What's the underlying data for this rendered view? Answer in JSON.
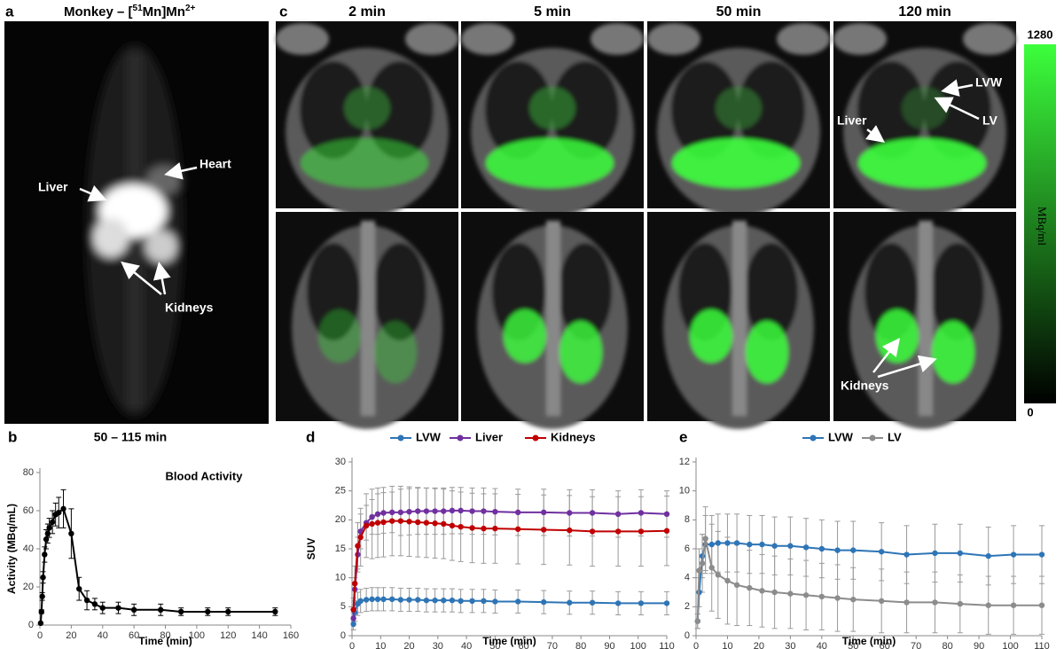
{
  "panel_a": {
    "label": "a",
    "title": [
      "Monkey – [",
      "51",
      "Mn]Mn",
      "2+"
    ],
    "annotations": [
      "Heart",
      "Liver",
      "Kidneys"
    ]
  },
  "panel_c": {
    "label": "c",
    "columns": [
      "2 min",
      "5 min",
      "50 min",
      "120 min"
    ],
    "annotations": [
      "LVW",
      "LV",
      "Liver",
      "Kidneys"
    ],
    "colorbar": {
      "max": 1280,
      "min": 0,
      "unit": "MBq/ml"
    }
  },
  "chart_data": [
    {
      "type": "line",
      "panel": "b",
      "title": "50 – 115 min",
      "annotation": "Blood Activity",
      "xlabel": "Time (min)",
      "ylabel": "Activity (MBq/mL)",
      "xlim": [
        0,
        160
      ],
      "xticks": [
        0,
        20,
        40,
        60,
        80,
        100,
        120,
        140,
        160
      ],
      "ylim": [
        0,
        80
      ],
      "yticks": [
        0,
        20,
        40,
        60,
        80
      ],
      "color": "#000000",
      "x": [
        0.5,
        1,
        1.5,
        2,
        3,
        4,
        5,
        6,
        8,
        10,
        12,
        15,
        20,
        25,
        30,
        35,
        40,
        50,
        60,
        77,
        90,
        107,
        120,
        150
      ],
      "values": [
        1,
        7,
        15,
        25,
        37,
        45,
        48,
        51,
        54,
        58,
        59,
        61,
        48,
        19,
        13,
        11,
        9,
        9,
        8,
        8,
        7,
        7,
        7,
        7
      ],
      "errors": [
        0,
        1,
        2,
        3,
        4,
        5,
        5,
        5,
        6,
        6,
        8,
        10,
        13,
        6,
        5,
        3,
        3,
        3,
        3,
        3,
        2,
        2,
        2,
        2
      ]
    },
    {
      "type": "line",
      "panel": "d",
      "xlabel": "Time (min)",
      "ylabel": "SUV",
      "xlim": [
        0,
        110
      ],
      "xticks": [
        0,
        10,
        20,
        30,
        40,
        50,
        60,
        70,
        80,
        90,
        100,
        110
      ],
      "ylim": [
        0,
        30
      ],
      "yticks": [
        0,
        5,
        10,
        15,
        20,
        25,
        30
      ],
      "x": [
        0.5,
        1,
        2,
        3,
        5,
        7,
        9,
        11,
        14,
        17,
        20,
        23,
        26,
        29,
        32,
        35,
        38,
        42,
        46,
        50,
        58,
        67,
        76,
        84,
        93,
        101,
        110
      ],
      "series": [
        {
          "name": "LVW",
          "color": "#2e75b6",
          "values": [
            2,
            4,
            5.5,
            6,
            6.2,
            6.3,
            6.3,
            6.3,
            6.3,
            6.2,
            6.2,
            6.2,
            6.1,
            6.1,
            6.1,
            6.1,
            6,
            6,
            6,
            5.9,
            5.9,
            5.8,
            5.7,
            5.7,
            5.6,
            5.6,
            5.6
          ],
          "errors": [
            1,
            1.5,
            2,
            2,
            2,
            2,
            2,
            2,
            2,
            2,
            2,
            2,
            2,
            2,
            2,
            2,
            2,
            2,
            2,
            2,
            2,
            2,
            2,
            2,
            2,
            2,
            2
          ]
        },
        {
          "name": "Liver",
          "color": "#7030a0",
          "values": [
            3,
            8,
            14,
            18,
            19.5,
            20.5,
            21,
            21.2,
            21.3,
            21.3,
            21.4,
            21.5,
            21.5,
            21.5,
            21.5,
            21.6,
            21.6,
            21.5,
            21.5,
            21.4,
            21.3,
            21.3,
            21.2,
            21.2,
            21,
            21.2,
            21
          ],
          "errors": [
            1,
            2,
            3,
            3,
            3,
            3,
            3.5,
            3.5,
            3.5,
            4,
            4,
            4,
            4,
            4,
            4,
            4,
            4,
            4,
            4,
            4,
            4,
            4,
            4,
            4,
            4,
            4,
            4
          ]
        },
        {
          "name": "Kidneys",
          "color": "#c00000",
          "values": [
            4.5,
            9,
            15.5,
            17,
            19,
            19.3,
            19.5,
            19.6,
            19.8,
            19.8,
            19.7,
            19.6,
            19.5,
            19.4,
            19.3,
            19,
            18.8,
            18.6,
            18.5,
            18.5,
            18.4,
            18.3,
            18.2,
            18,
            18,
            18,
            18.1
          ],
          "errors": [
            2,
            3,
            4,
            5,
            5.5,
            6,
            6,
            6,
            6,
            6,
            6,
            6,
            6,
            6,
            6,
            6,
            6,
            6,
            6,
            6,
            6,
            6,
            6,
            6,
            6,
            6,
            6
          ]
        }
      ]
    },
    {
      "type": "line",
      "panel": "e",
      "xlabel": "Time (min)",
      "xlim": [
        0,
        110
      ],
      "xticks": [
        0,
        10,
        20,
        30,
        40,
        50,
        60,
        70,
        80,
        90,
        100,
        110
      ],
      "ylim": [
        0,
        12
      ],
      "yticks": [
        0,
        2,
        4,
        6,
        8,
        10,
        12
      ],
      "x": [
        0.5,
        1,
        2,
        3,
        5,
        7,
        10,
        13,
        17,
        21,
        25,
        30,
        35,
        40,
        45,
        50,
        59,
        67,
        76,
        84,
        93,
        101,
        110
      ],
      "series": [
        {
          "name": "LVW",
          "color": "#2e75b6",
          "values": [
            1,
            3,
            5.5,
            6.3,
            6.3,
            6.4,
            6.4,
            6.4,
            6.3,
            6.3,
            6.2,
            6.2,
            6.1,
            6,
            5.9,
            5.9,
            5.8,
            5.6,
            5.7,
            5.7,
            5.5,
            5.6,
            5.6
          ],
          "errors": [
            0.5,
            1,
            1.5,
            2,
            2,
            2,
            2,
            2,
            2,
            2,
            2,
            2,
            2,
            2,
            2,
            2,
            2,
            2,
            2,
            2,
            2,
            2,
            2
          ]
        },
        {
          "name": "LV",
          "color": "#8c8c8c",
          "values": [
            1,
            4.5,
            5,
            6.7,
            4.7,
            4.2,
            3.8,
            3.5,
            3.3,
            3.1,
            3,
            2.9,
            2.8,
            2.7,
            2.6,
            2.5,
            2.4,
            2.3,
            2.3,
            2.2,
            2.1,
            2.1,
            2.1
          ],
          "errors": [
            0.5,
            1.5,
            2,
            2.2,
            3,
            3,
            3,
            2.8,
            2.6,
            2.5,
            2.5,
            2.4,
            2.4,
            2.3,
            2.3,
            2.2,
            2.2,
            2.1,
            2.1,
            2,
            2,
            2,
            2
          ]
        }
      ]
    }
  ]
}
